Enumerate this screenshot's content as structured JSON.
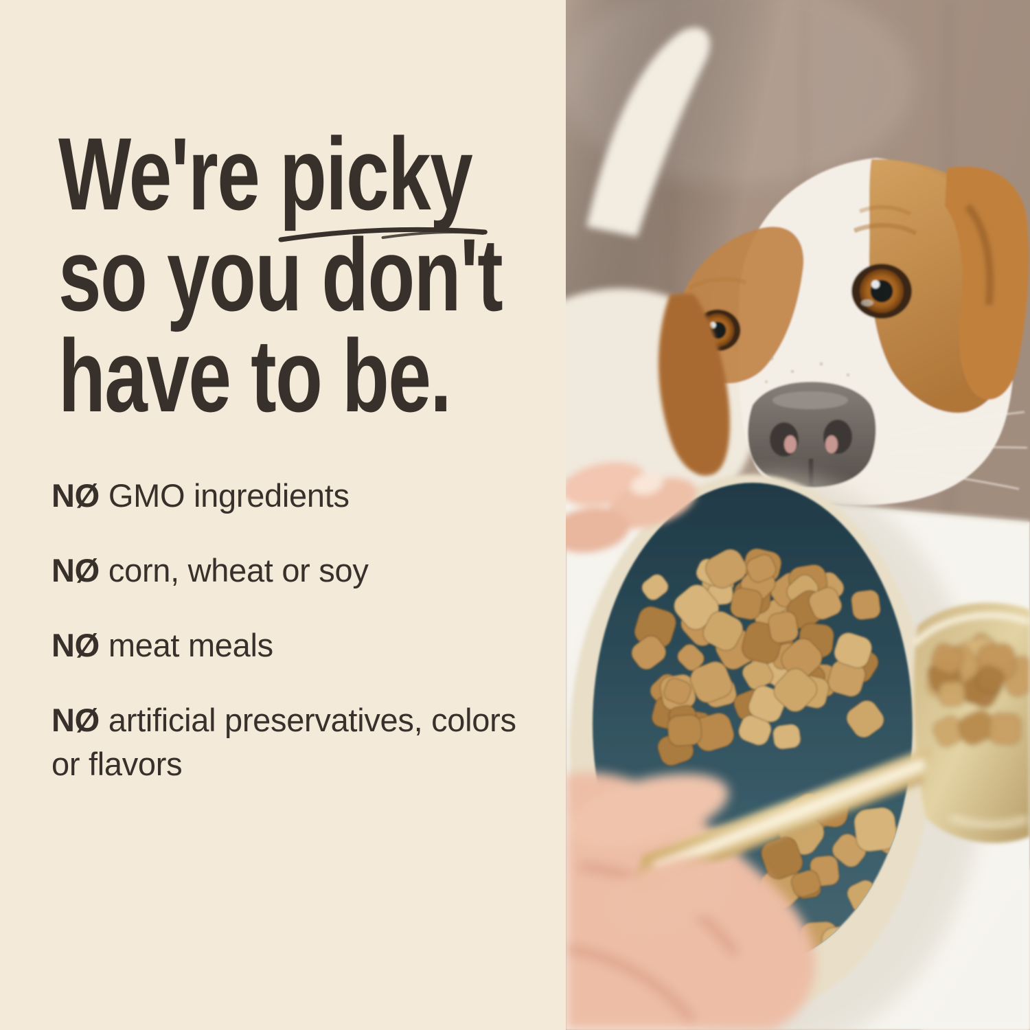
{
  "panel": {
    "background_color": "#f3ead9",
    "text_color": "#38302a",
    "headline": {
      "full": "We're picky so you don't have to be.",
      "line1_before": "We're ",
      "underlined_word": "picky",
      "line2": "so you don't",
      "line3": "have to be."
    },
    "bullets": [
      {
        "prefix": "NØ",
        "text": "GMO ingredients"
      },
      {
        "prefix": "NØ",
        "text": "corn, wheat or soy"
      },
      {
        "prefix": "NØ",
        "text": "meat meals"
      },
      {
        "prefix": "NØ",
        "text": "artificial preservatives, colors or flavors"
      }
    ]
  },
  "photo": {
    "alt": "A white-and-tan dog peeks over the edge of a white table at a dark teal bowl filled with kibble while a person's hand adds more kibble from a gold measuring scoop"
  }
}
